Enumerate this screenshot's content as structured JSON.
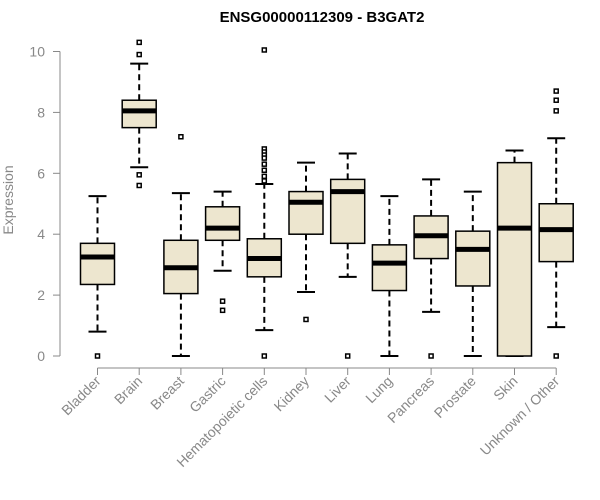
{
  "chart_data": {
    "type": "boxplot",
    "title": "ENSG00000112309 - B3GAT2",
    "xlabel": "",
    "ylabel": "Expression",
    "ylim": [
      0,
      10.5
    ],
    "yticks": [
      0,
      2,
      4,
      6,
      8,
      10
    ],
    "box_fill": "#ede6cf",
    "box_stroke": "#000000",
    "outlier_color": "#000000",
    "categories": [
      "Bladder",
      "Brain",
      "Breast",
      "Gastric",
      "Hematopoietic cells",
      "Kidney",
      "Liver",
      "Lung",
      "Pancreas",
      "Prostate",
      "Skin",
      "Unknown / Other"
    ],
    "boxes": [
      {
        "name": "Bladder",
        "min": 0.8,
        "q1": 2.35,
        "median": 3.25,
        "q3": 3.7,
        "max": 5.25,
        "outliers": [
          0.0
        ]
      },
      {
        "name": "Brain",
        "min": 6.2,
        "q1": 7.5,
        "median": 8.05,
        "q3": 8.4,
        "max": 9.6,
        "outliers": [
          10.3,
          9.9,
          5.95,
          5.6
        ]
      },
      {
        "name": "Breast",
        "min": 0.0,
        "q1": 2.05,
        "median": 2.9,
        "q3": 3.8,
        "max": 5.35,
        "outliers": [
          7.2
        ]
      },
      {
        "name": "Gastric",
        "min": 2.8,
        "q1": 3.8,
        "median": 4.2,
        "q3": 4.9,
        "max": 5.4,
        "outliers": [
          1.8,
          1.5
        ]
      },
      {
        "name": "Hematopoietic cells",
        "min": 0.85,
        "q1": 2.6,
        "median": 3.2,
        "q3": 3.85,
        "max": 5.65,
        "outliers": [
          10.05,
          6.8,
          6.7,
          6.6,
          6.5,
          6.3,
          6.1,
          5.9,
          5.75,
          0.0
        ]
      },
      {
        "name": "Kidney",
        "min": 2.1,
        "q1": 4.0,
        "median": 5.05,
        "q3": 5.4,
        "max": 6.35,
        "outliers": [
          1.2
        ]
      },
      {
        "name": "Liver",
        "min": 2.6,
        "q1": 3.7,
        "median": 5.4,
        "q3": 5.8,
        "max": 6.65,
        "outliers": [
          0.0
        ]
      },
      {
        "name": "Lung",
        "min": 0.0,
        "q1": 2.15,
        "median": 3.05,
        "q3": 3.65,
        "max": 5.25,
        "outliers": []
      },
      {
        "name": "Pancreas",
        "min": 1.45,
        "q1": 3.2,
        "median": 3.95,
        "q3": 4.6,
        "max": 5.8,
        "outliers": [
          0.0
        ]
      },
      {
        "name": "Prostate",
        "min": 0.0,
        "q1": 2.3,
        "median": 3.5,
        "q3": 4.1,
        "max": 5.4,
        "outliers": []
      },
      {
        "name": "Skin",
        "min": 0.0,
        "q1": 0.0,
        "median": 4.2,
        "q3": 6.35,
        "max": 6.75,
        "outliers": []
      },
      {
        "name": "Unknown / Other",
        "min": 0.95,
        "q1": 3.1,
        "median": 4.15,
        "q3": 5.0,
        "max": 7.15,
        "outliers": [
          8.7,
          8.4,
          8.05,
          0.0
        ]
      }
    ]
  }
}
